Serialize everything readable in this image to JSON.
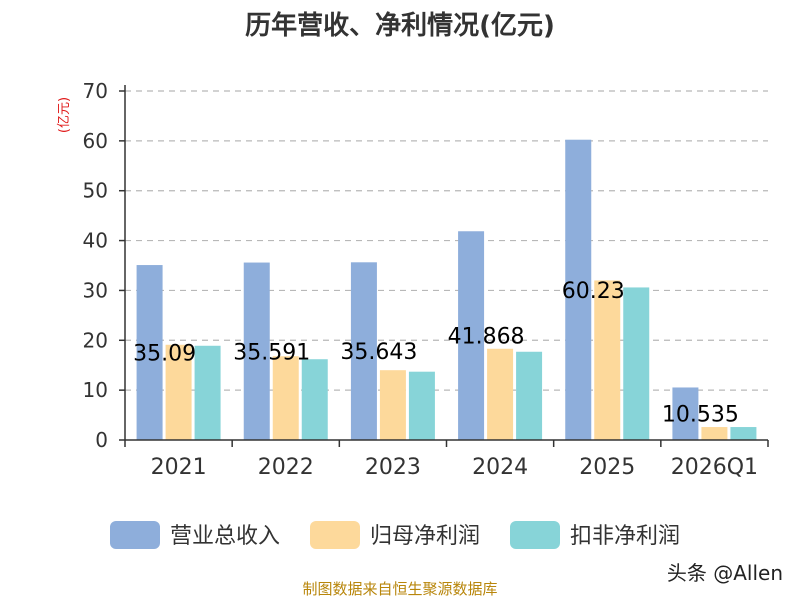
{
  "chart_data": {
    "type": "bar",
    "title": "历年营收、净利情况(亿元)",
    "ylabel": "(亿元)",
    "categories": [
      "2021",
      "2022",
      "2023",
      "2024",
      "2025",
      "2026Q1"
    ],
    "ylim": [
      0,
      70
    ],
    "yticks": [
      "0",
      "10",
      "20",
      "30",
      "40",
      "50",
      "60",
      "70"
    ],
    "grid": true,
    "legend_position": "bottom",
    "series": [
      {
        "name": "营业总收入",
        "color": "#8eaedb",
        "values": [
          35.09,
          35.591,
          35.643,
          41.868,
          60.23,
          10.535
        ]
      },
      {
        "name": "归母净利润",
        "color": "#fdd99b",
        "values": [
          19.1,
          16.8,
          14.0,
          18.3,
          32.0,
          2.6
        ]
      },
      {
        "name": "扣非净利润",
        "color": "#87d4d8",
        "values": [
          18.9,
          16.2,
          13.7,
          17.7,
          30.6,
          2.6
        ]
      }
    ],
    "data_labels": [
      "35.09",
      "35.591",
      "35.643",
      "41.868",
      "60.23",
      "10.535"
    ]
  },
  "footer": {
    "source": "制图数据来自恒生聚源数据库",
    "watermark": "头条 @Allen"
  }
}
